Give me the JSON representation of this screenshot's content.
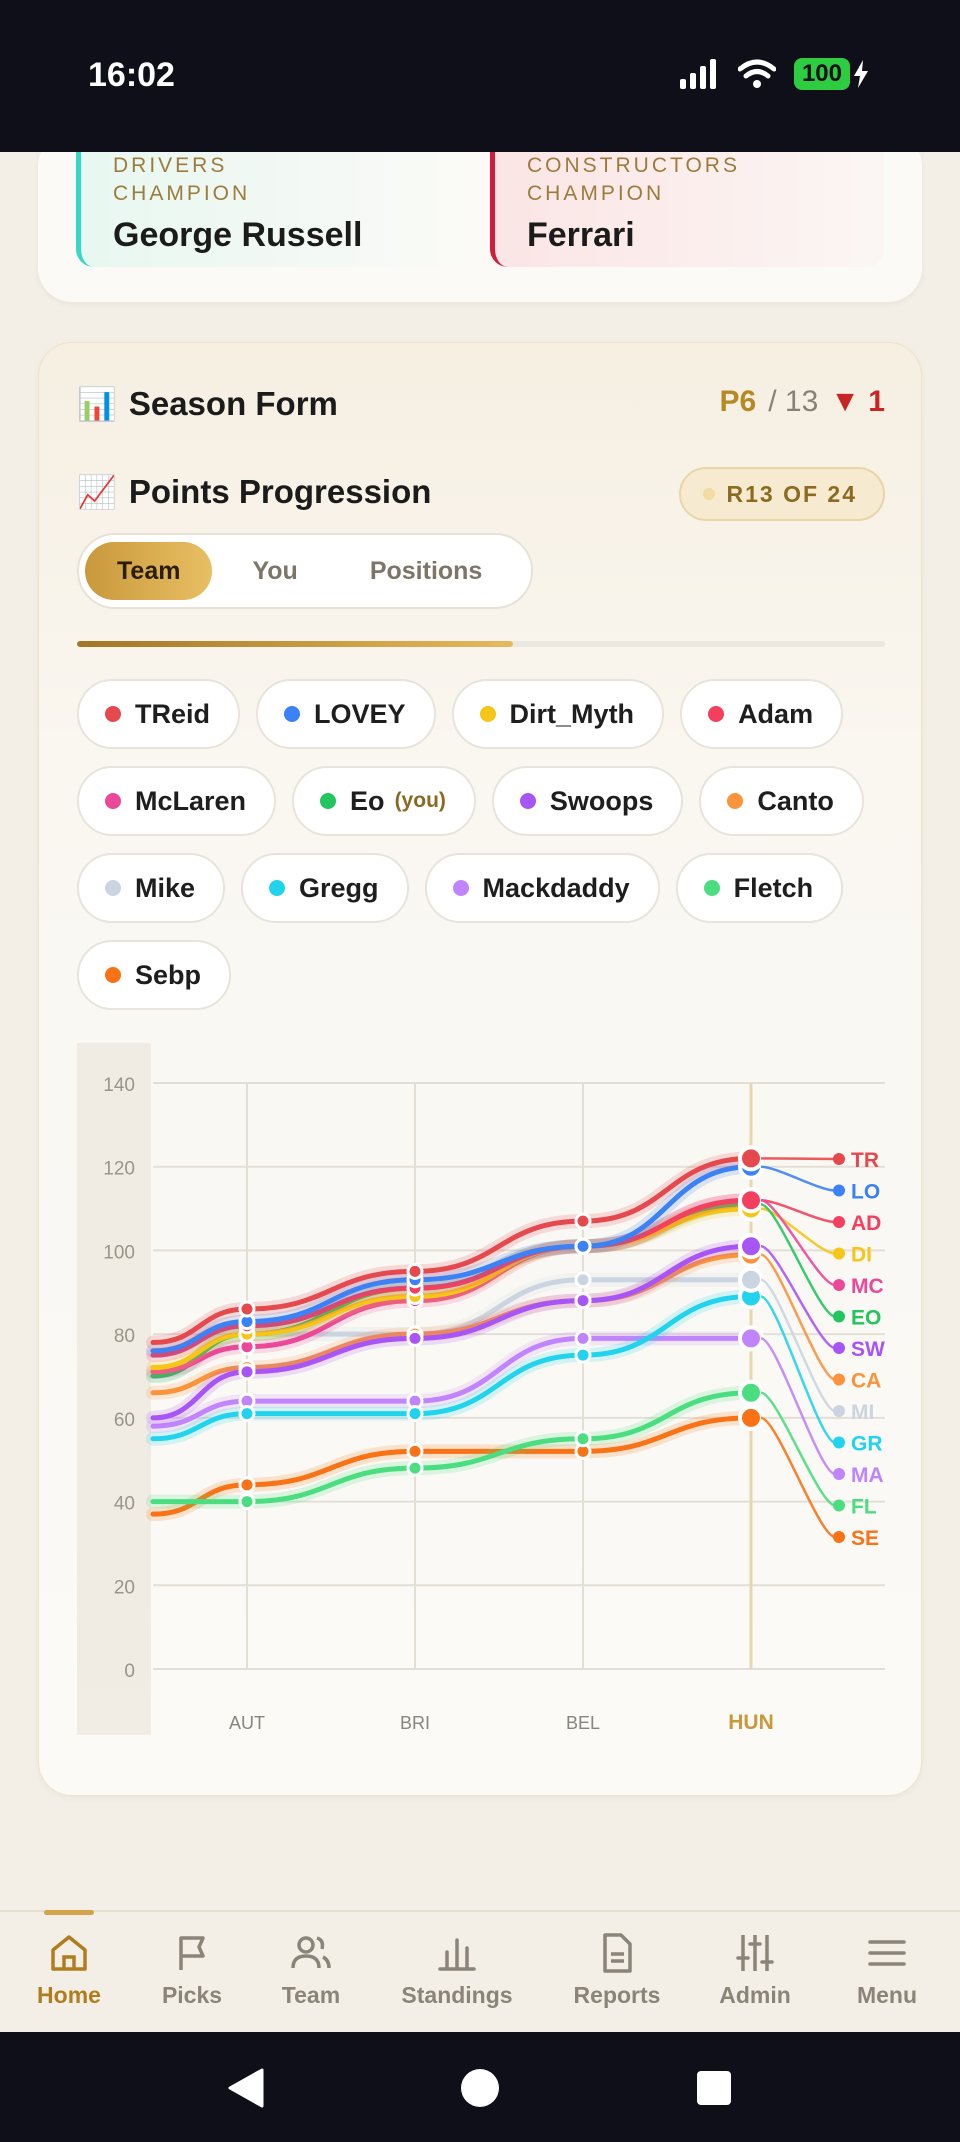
{
  "status_bar": {
    "time": "16:02",
    "battery": "100"
  },
  "champions": {
    "drivers": {
      "label_line1": "DRIVERS",
      "label_line2": "CHAMPION",
      "name": "George Russell"
    },
    "constructors": {
      "label_line1": "CONSTRUCTORS",
      "label_line2": "CHAMPION",
      "name": "Ferrari"
    }
  },
  "season_form": {
    "icon": "bar-chart-icon",
    "title": "Season Form",
    "position": "P6",
    "total": "/ 13",
    "change": "▼ 1",
    "change_color": "#c92525"
  },
  "points_progression": {
    "icon": "trend-up-icon",
    "title": "Points Progression",
    "round_badge": "R13 OF 24",
    "progress_fraction": 0.54
  },
  "tabs": [
    {
      "label": "Team",
      "active": true
    },
    {
      "label": "You",
      "active": false
    },
    {
      "label": "Positions",
      "active": false
    }
  ],
  "legend_chips": [
    {
      "name": "TReid",
      "color": "#e5484d"
    },
    {
      "name": "LOVEY",
      "color": "#3b82f6"
    },
    {
      "name": "Dirt_Myth",
      "color": "#f5c518"
    },
    {
      "name": "Adam",
      "color": "#f43f5e"
    },
    {
      "name": "McLaren",
      "color": "#ec4899"
    },
    {
      "name": "Eo",
      "color": "#22c55e",
      "you": "(you)"
    },
    {
      "name": "Swoops",
      "color": "#a855f7"
    },
    {
      "name": "Canto",
      "color": "#fb923c"
    },
    {
      "name": "Mike",
      "color": "#cbd5e1"
    },
    {
      "name": "Gregg",
      "color": "#22d3ee"
    },
    {
      "name": "Mackdaddy",
      "color": "#c084fc"
    },
    {
      "name": "Fletch",
      "color": "#4ade80"
    },
    {
      "name": "Sebp",
      "color": "#f97316"
    }
  ],
  "chart_data": {
    "type": "line",
    "categories": [
      "AUT",
      "BRI",
      "BEL",
      "HUN"
    ],
    "highlight_category": "HUN",
    "ylim": [
      0,
      140
    ],
    "yticks": [
      0,
      20,
      40,
      60,
      80,
      100,
      120,
      140
    ],
    "grid": true,
    "series": [
      {
        "name": "TR",
        "color": "#e5484d",
        "start": 78,
        "values": [
          86,
          95,
          107,
          122
        ]
      },
      {
        "name": "LO",
        "color": "#3b82f6",
        "start": 76,
        "values": [
          83,
          93,
          101,
          120
        ]
      },
      {
        "name": "AD",
        "color": "#f43f5e",
        "start": 75,
        "values": [
          82,
          91,
          101,
          112
        ]
      },
      {
        "name": "DI",
        "color": "#f5c518",
        "start": 72,
        "values": [
          80,
          89,
          101,
          110
        ]
      },
      {
        "name": "MC",
        "color": "#ec4899",
        "start": 71,
        "values": [
          77,
          88,
          101,
          112
        ]
      },
      {
        "name": "EO",
        "color": "#22c55e",
        "start": 70,
        "values": [
          80,
          91,
          101,
          111
        ]
      },
      {
        "name": "SW",
        "color": "#a855f7",
        "start": 60,
        "values": [
          71,
          79,
          88,
          101
        ]
      },
      {
        "name": "CA",
        "color": "#fb923c",
        "start": 66,
        "values": [
          72,
          80,
          88,
          99
        ]
      },
      {
        "name": "MI",
        "color": "#cbd5e1",
        "start": 70,
        "values": [
          80,
          80,
          93,
          93
        ]
      },
      {
        "name": "GR",
        "color": "#22d3ee",
        "start": 55,
        "values": [
          61,
          61,
          75,
          89
        ]
      },
      {
        "name": "MA",
        "color": "#c084fc",
        "start": 58,
        "values": [
          64,
          64,
          79,
          79
        ]
      },
      {
        "name": "FL",
        "color": "#4ade80",
        "start": 40,
        "values": [
          40,
          48,
          55,
          66
        ]
      },
      {
        "name": "SE",
        "color": "#f97316",
        "start": 37,
        "values": [
          44,
          52,
          52,
          60
        ]
      }
    ]
  },
  "bottom_nav": [
    {
      "label": "Home",
      "icon": "home-icon",
      "active": true
    },
    {
      "label": "Picks",
      "icon": "flag-icon",
      "active": false
    },
    {
      "label": "Team",
      "icon": "people-icon",
      "active": false
    },
    {
      "label": "Standings",
      "icon": "bar-chart-icon",
      "active": false
    },
    {
      "label": "Reports",
      "icon": "document-icon",
      "active": false
    },
    {
      "label": "Admin",
      "icon": "sliders-icon",
      "active": false
    },
    {
      "label": "Menu",
      "icon": "menu-icon",
      "active": false
    }
  ]
}
